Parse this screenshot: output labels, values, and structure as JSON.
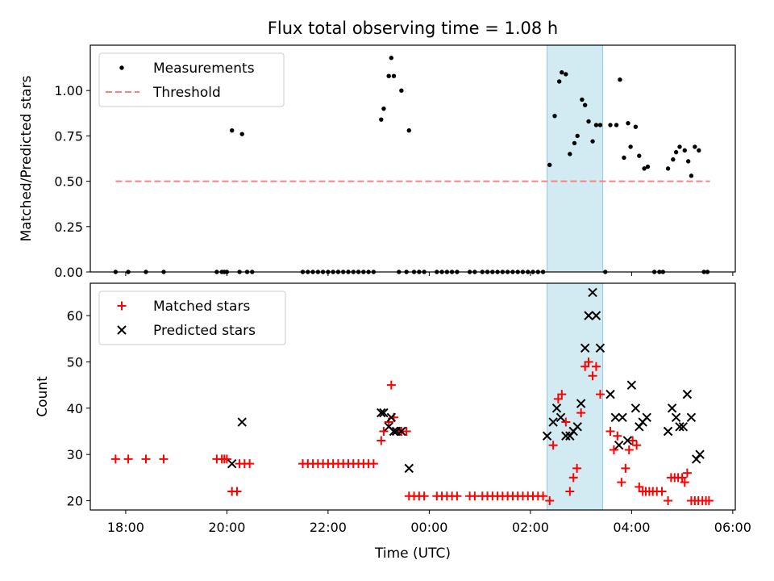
{
  "title": "Flux total observing time = 1.08 h",
  "xlabel": "Time (UTC)",
  "x_ticks": [
    "18:00",
    "20:00",
    "22:00",
    "00:00",
    "02:00",
    "04:00",
    "06:00"
  ],
  "chart_data": [
    {
      "type": "scatter",
      "ylabel": "Matched/Predicted stars",
      "ylim": [
        0,
        1.25
      ],
      "xlim": [
        17.3,
        30.05
      ],
      "y_ticks": [
        "0.00",
        "0.25",
        "0.50",
        "0.75",
        "1.00"
      ],
      "legend_position": "top-left",
      "shaded_interval": [
        26.33,
        27.43
      ],
      "shade_color": "#add8e6",
      "series": [
        {
          "name": "Measurements",
          "color": "#000000",
          "marker": "dot",
          "points": [
            [
              17.8,
              0
            ],
            [
              18.05,
              0
            ],
            [
              18.4,
              0
            ],
            [
              18.75,
              0
            ],
            [
              19.8,
              0
            ],
            [
              19.9,
              0
            ],
            [
              19.95,
              0
            ],
            [
              20.0,
              0
            ],
            [
              20.1,
              0.78
            ],
            [
              20.25,
              0
            ],
            [
              20.3,
              0.76
            ],
            [
              20.4,
              0
            ],
            [
              20.5,
              0
            ],
            [
              21.5,
              0
            ],
            [
              21.6,
              0
            ],
            [
              21.7,
              0
            ],
            [
              21.8,
              0
            ],
            [
              21.9,
              0
            ],
            [
              22.0,
              0
            ],
            [
              22.1,
              0
            ],
            [
              22.2,
              0
            ],
            [
              22.3,
              0
            ],
            [
              22.4,
              0
            ],
            [
              22.5,
              0
            ],
            [
              22.6,
              0
            ],
            [
              22.7,
              0
            ],
            [
              22.8,
              0
            ],
            [
              22.9,
              0
            ],
            [
              23.05,
              0.84
            ],
            [
              23.1,
              0.9
            ],
            [
              23.2,
              1.08
            ],
            [
              23.25,
              1.18
            ],
            [
              23.3,
              1.08
            ],
            [
              23.4,
              0
            ],
            [
              23.45,
              1.0
            ],
            [
              23.55,
              0
            ],
            [
              23.6,
              0.78
            ],
            [
              23.7,
              0
            ],
            [
              23.8,
              0
            ],
            [
              23.9,
              0
            ],
            [
              24.15,
              0
            ],
            [
              24.25,
              0
            ],
            [
              24.35,
              0
            ],
            [
              24.45,
              0
            ],
            [
              24.55,
              0
            ],
            [
              24.8,
              0
            ],
            [
              24.9,
              0
            ],
            [
              25.05,
              0
            ],
            [
              25.15,
              0
            ],
            [
              25.25,
              0
            ],
            [
              25.35,
              0
            ],
            [
              25.45,
              0
            ],
            [
              25.55,
              0
            ],
            [
              25.65,
              0
            ],
            [
              25.75,
              0
            ],
            [
              25.85,
              0
            ],
            [
              25.95,
              0
            ],
            [
              26.05,
              0
            ],
            [
              26.15,
              0
            ],
            [
              26.25,
              0
            ],
            [
              26.38,
              0.59
            ],
            [
              26.48,
              0.86
            ],
            [
              26.57,
              1.05
            ],
            [
              26.62,
              1.1
            ],
            [
              26.7,
              1.09
            ],
            [
              26.78,
              0.65
            ],
            [
              26.87,
              0.71
            ],
            [
              26.93,
              0.75
            ],
            [
              27.02,
              0.95
            ],
            [
              27.08,
              0.92
            ],
            [
              27.15,
              0.83
            ],
            [
              27.23,
              0.72
            ],
            [
              27.3,
              0.81
            ],
            [
              27.38,
              0.81
            ],
            [
              27.48,
              0
            ],
            [
              27.58,
              0.81
            ],
            [
              27.7,
              0.81
            ],
            [
              27.77,
              1.06
            ],
            [
              27.85,
              0.63
            ],
            [
              27.93,
              0.82
            ],
            [
              27.98,
              0.69
            ],
            [
              28.08,
              0.8
            ],
            [
              28.15,
              0.64
            ],
            [
              28.25,
              0.57
            ],
            [
              28.32,
              0.58
            ],
            [
              28.45,
              0
            ],
            [
              28.55,
              0
            ],
            [
              28.62,
              0
            ],
            [
              28.72,
              0.57
            ],
            [
              28.82,
              0.62
            ],
            [
              28.88,
              0.66
            ],
            [
              28.95,
              0.69
            ],
            [
              29.05,
              0.67
            ],
            [
              29.12,
              0.61
            ],
            [
              29.18,
              0.53
            ],
            [
              29.25,
              0.69
            ],
            [
              29.33,
              0.67
            ],
            [
              29.43,
              0
            ],
            [
              29.5,
              0
            ]
          ]
        },
        {
          "name": "Threshold",
          "color": "#ff7f7f",
          "style": "dashed",
          "x": [
            17.8,
            29.55
          ],
          "y": [
            0.5,
            0.5
          ]
        }
      ]
    },
    {
      "type": "scatter",
      "ylabel": "Count",
      "ylim": [
        18,
        67
      ],
      "xlim": [
        17.3,
        30.05
      ],
      "y_ticks": [
        "20",
        "30",
        "40",
        "50",
        "60"
      ],
      "legend_position": "top-left",
      "shaded_interval": [
        26.33,
        27.43
      ],
      "shade_color": "#add8e6",
      "series": [
        {
          "name": "Matched stars",
          "color": "#ff0000",
          "marker": "plus",
          "points": [
            [
              17.8,
              29
            ],
            [
              18.05,
              29
            ],
            [
              18.4,
              29
            ],
            [
              18.75,
              29
            ],
            [
              19.8,
              29
            ],
            [
              19.9,
              29
            ],
            [
              19.95,
              29
            ],
            [
              20.0,
              29
            ],
            [
              20.1,
              22
            ],
            [
              20.2,
              22
            ],
            [
              20.25,
              28
            ],
            [
              20.35,
              28
            ],
            [
              20.45,
              28
            ],
            [
              21.5,
              28
            ],
            [
              21.6,
              28
            ],
            [
              21.7,
              28
            ],
            [
              21.8,
              28
            ],
            [
              21.9,
              28
            ],
            [
              22.0,
              28
            ],
            [
              22.1,
              28
            ],
            [
              22.2,
              28
            ],
            [
              22.3,
              28
            ],
            [
              22.4,
              28
            ],
            [
              22.5,
              28
            ],
            [
              22.6,
              28
            ],
            [
              22.7,
              28
            ],
            [
              22.8,
              28
            ],
            [
              22.9,
              28
            ],
            [
              23.05,
              33
            ],
            [
              23.1,
              35
            ],
            [
              23.2,
              37
            ],
            [
              23.25,
              45
            ],
            [
              23.3,
              38
            ],
            [
              23.4,
              35
            ],
            [
              23.45,
              35
            ],
            [
              23.55,
              35
            ],
            [
              23.6,
              21
            ],
            [
              23.7,
              21
            ],
            [
              23.8,
              21
            ],
            [
              23.9,
              21
            ],
            [
              24.15,
              21
            ],
            [
              24.25,
              21
            ],
            [
              24.35,
              21
            ],
            [
              24.45,
              21
            ],
            [
              24.55,
              21
            ],
            [
              24.8,
              21
            ],
            [
              24.9,
              21
            ],
            [
              25.05,
              21
            ],
            [
              25.15,
              21
            ],
            [
              25.25,
              21
            ],
            [
              25.35,
              21
            ],
            [
              25.45,
              21
            ],
            [
              25.55,
              21
            ],
            [
              25.65,
              21
            ],
            [
              25.75,
              21
            ],
            [
              25.85,
              21
            ],
            [
              25.95,
              21
            ],
            [
              26.05,
              21
            ],
            [
              26.15,
              21
            ],
            [
              26.25,
              21
            ],
            [
              26.38,
              20
            ],
            [
              26.45,
              32
            ],
            [
              26.55,
              42
            ],
            [
              26.62,
              43
            ],
            [
              26.7,
              37
            ],
            [
              26.78,
              22
            ],
            [
              26.85,
              25
            ],
            [
              26.92,
              27
            ],
            [
              27.0,
              39
            ],
            [
              27.08,
              49
            ],
            [
              27.15,
              50
            ],
            [
              27.23,
              47
            ],
            [
              27.3,
              49
            ],
            [
              27.38,
              43
            ],
            [
              27.58,
              35
            ],
            [
              27.65,
              31
            ],
            [
              27.72,
              34
            ],
            [
              27.8,
              24
            ],
            [
              27.88,
              27
            ],
            [
              27.95,
              31
            ],
            [
              28.02,
              33
            ],
            [
              28.1,
              32
            ],
            [
              28.15,
              23
            ],
            [
              28.22,
              22
            ],
            [
              28.28,
              22
            ],
            [
              28.35,
              22
            ],
            [
              28.42,
              22
            ],
            [
              28.5,
              22
            ],
            [
              28.6,
              22
            ],
            [
              28.72,
              20
            ],
            [
              28.78,
              25
            ],
            [
              28.85,
              25
            ],
            [
              28.92,
              25
            ],
            [
              29.0,
              25
            ],
            [
              29.05,
              24
            ],
            [
              29.1,
              26
            ],
            [
              29.18,
              20
            ],
            [
              29.25,
              20
            ],
            [
              29.32,
              20
            ],
            [
              29.4,
              20
            ],
            [
              29.47,
              20
            ],
            [
              29.53,
              20
            ]
          ]
        },
        {
          "name": "Predicted stars",
          "color": "#000000",
          "marker": "x",
          "points": [
            [
              20.1,
              28
            ],
            [
              20.3,
              37
            ],
            [
              23.05,
              39
            ],
            [
              23.1,
              39
            ],
            [
              23.2,
              36
            ],
            [
              23.25,
              38
            ],
            [
              23.3,
              35
            ],
            [
              23.35,
              35
            ],
            [
              23.45,
              35
            ],
            [
              23.6,
              27
            ],
            [
              26.33,
              34
            ],
            [
              26.45,
              37
            ],
            [
              26.52,
              40
            ],
            [
              26.6,
              38
            ],
            [
              26.7,
              34
            ],
            [
              26.78,
              34
            ],
            [
              26.85,
              35
            ],
            [
              26.93,
              36
            ],
            [
              27.0,
              41
            ],
            [
              27.08,
              53
            ],
            [
              27.15,
              60
            ],
            [
              27.23,
              65
            ],
            [
              27.3,
              60
            ],
            [
              27.38,
              53
            ],
            [
              27.58,
              43
            ],
            [
              27.68,
              38
            ],
            [
              27.75,
              32
            ],
            [
              27.82,
              38
            ],
            [
              27.92,
              33
            ],
            [
              28.0,
              45
            ],
            [
              28.08,
              40
            ],
            [
              28.15,
              36
            ],
            [
              28.22,
              37
            ],
            [
              28.3,
              38
            ],
            [
              28.72,
              35
            ],
            [
              28.8,
              40
            ],
            [
              28.88,
              38
            ],
            [
              28.95,
              36
            ],
            [
              29.02,
              36
            ],
            [
              29.1,
              43
            ],
            [
              29.18,
              38
            ],
            [
              29.28,
              29
            ],
            [
              29.35,
              30
            ]
          ]
        }
      ]
    }
  ]
}
